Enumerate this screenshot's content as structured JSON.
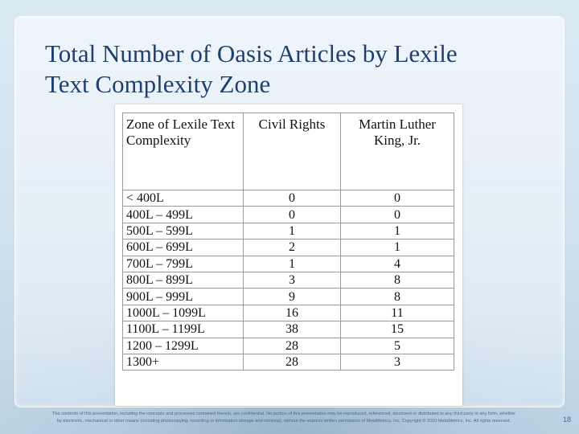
{
  "slide": {
    "title_line1": "Total Number of Oasis Articles by Lexile",
    "title_line2": "Text Complexity Zone",
    "footer_line1": "The contents of this presentation, including the concepts and processes contained therein, are confidential. No portion of this presentation may be reproduced, referenced, disclosed or distributed to any third party in any form, whether",
    "footer_line2": "by electronic, mechanical or other means (including photocopying, recording or information storage and retrieval), without the express written permission of MetaMetrics, Inc. Copyright © 2010 MetaMetrics, Inc. All rights reserved.",
    "page_number": "18"
  },
  "table": {
    "headers": [
      "Zone of Lexile Text Complexity",
      "Civil Rights",
      "Martin Luther King, Jr."
    ],
    "rows": [
      [
        "< 400L",
        "0",
        "0"
      ],
      [
        "400L – 499L",
        "0",
        "0"
      ],
      [
        "500L – 599L",
        "1",
        "1"
      ],
      [
        "600L – 699L",
        "2",
        "1"
      ],
      [
        "700L – 799L",
        "1",
        "4"
      ],
      [
        "800L – 899L",
        "3",
        "8"
      ],
      [
        "900L – 999L",
        "9",
        "8"
      ],
      [
        "1000L – 1099L",
        "16",
        "11"
      ],
      [
        "1100L – 1199L",
        "38",
        "15"
      ],
      [
        "1200 – 1299L",
        "28",
        "5"
      ],
      [
        "1300+",
        "28",
        "3"
      ]
    ]
  }
}
